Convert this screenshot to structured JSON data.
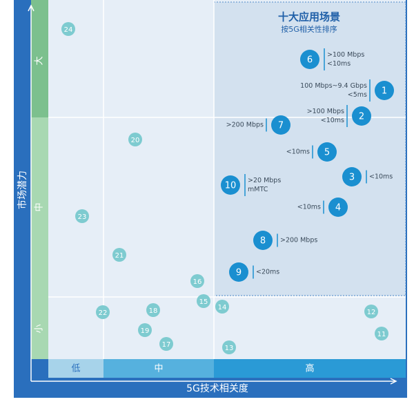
{
  "title": "十大应用场景",
  "subtitle": "按5G相关性排序",
  "y_axis": "市场潜力",
  "x_axis": "5G技术相关度",
  "y_levels": [
    "大",
    "中",
    "小"
  ],
  "x_levels": [
    "低",
    "中",
    "高"
  ],
  "nodes": [
    {
      "label": "24"
    },
    {
      "label": "20"
    },
    {
      "label": "23"
    },
    {
      "label": "21"
    },
    {
      "label": "16"
    },
    {
      "label": "15"
    },
    {
      "label": "14"
    },
    {
      "label": "22"
    },
    {
      "label": "18"
    },
    {
      "label": "19"
    },
    {
      "label": "17"
    },
    {
      "label": "13"
    },
    {
      "label": "12"
    },
    {
      "label": "11"
    },
    {
      "label": "6",
      "notes": [
        ">100 Mbps",
        "<10ms"
      ]
    },
    {
      "label": "1",
      "notes": [
        "100 Mbps~9.4 Gbps",
        "<5ms"
      ]
    },
    {
      "label": "2",
      "notes": [
        ">100 Mbps",
        "<10ms"
      ]
    },
    {
      "label": "7",
      "notes": [
        ">200 Mbps"
      ]
    },
    {
      "label": "5",
      "notes": [
        "<10ms"
      ]
    },
    {
      "label": "3",
      "notes": [
        "<10ms"
      ]
    },
    {
      "label": "10",
      "notes": [
        ">20 Mbps",
        "mMTC"
      ]
    },
    {
      "label": "4",
      "notes": [
        "<10ms"
      ]
    },
    {
      "label": "8",
      "notes": [
        ">200 Mbps"
      ]
    },
    {
      "label": "9",
      "notes": [
        "<20ms"
      ]
    }
  ]
}
